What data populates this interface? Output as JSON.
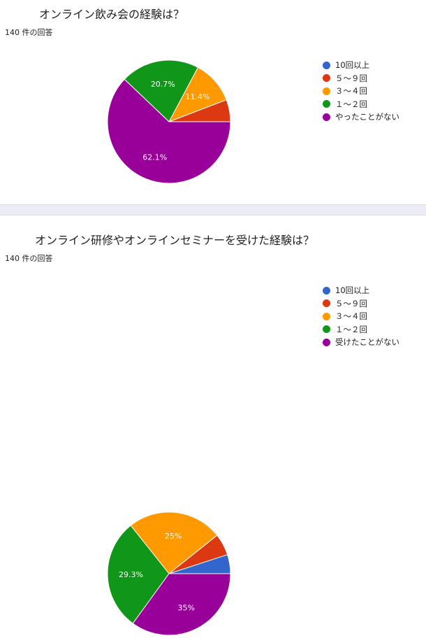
{
  "charts": [
    {
      "title": "オンライン飲み会の経験は？",
      "count_label": "140 件の回答",
      "chart_data": {
        "type": "pie",
        "categories": [
          "10回以上",
          "５～９回",
          "３～４回",
          "１～２回",
          "やったことがない"
        ],
        "values": [
          0,
          5.8,
          11.4,
          20.7,
          62.1
        ],
        "data_labels": [
          "",
          "",
          "11.4%",
          "20.7%",
          "62.1%"
        ],
        "colors": [
          "#3366cc",
          "#dc3912",
          "#ff9900",
          "#109618",
          "#990099"
        ],
        "title": "オンライン飲み会の経験は？",
        "legend": "right"
      }
    },
    {
      "title": "オンライン研修やオンラインセミナーを受けた経験は？",
      "count_label": "140 件の回答",
      "chart_data": {
        "type": "pie",
        "categories": [
          "10回以上",
          "５～９回",
          "３～４回",
          "１～２回",
          "受けたことがない"
        ],
        "values": [
          5,
          5.7,
          25,
          29.3,
          35
        ],
        "data_labels": [
          "",
          "",
          "25%",
          "29.3%",
          "35%"
        ],
        "colors": [
          "#3366cc",
          "#dc3912",
          "#ff9900",
          "#109618",
          "#990099"
        ],
        "title": "オンライン研修やオンラインセミナーを受けた経験は？",
        "legend": "right"
      }
    }
  ]
}
